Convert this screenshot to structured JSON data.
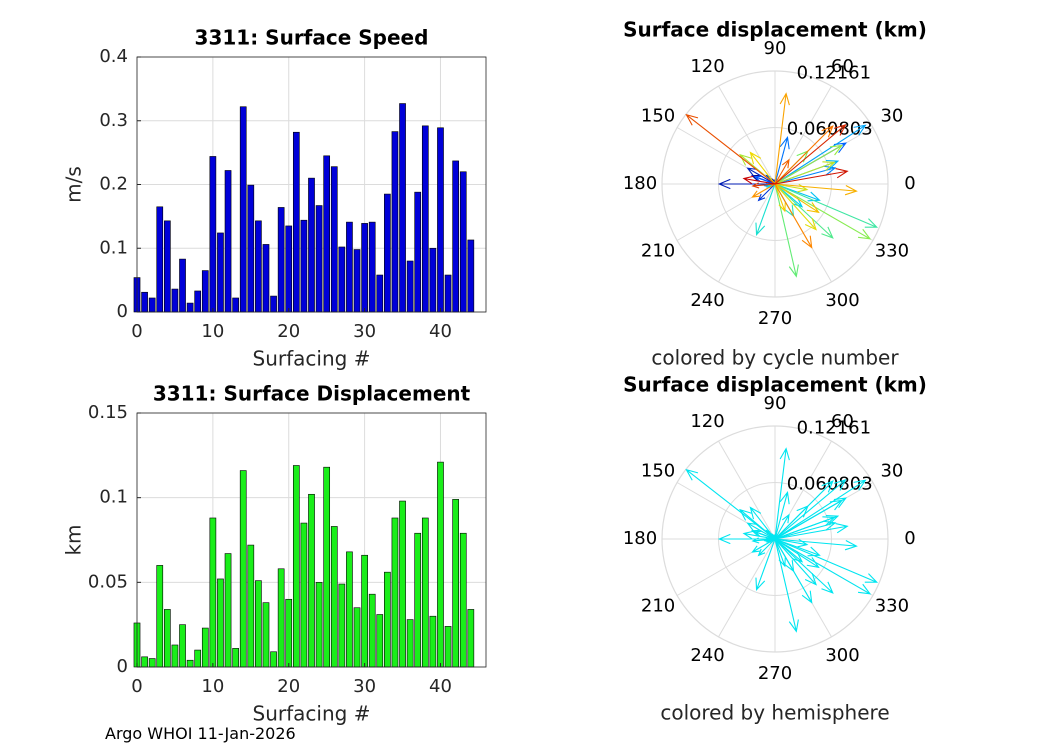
{
  "footer": "Argo WHOI 11-Jan-2026",
  "colors": {
    "speed_bar": "#0000d8",
    "displacement_bar": "#1aee1a",
    "hemisphere_arrow": "#00e5f0",
    "grid": "#dcdcdc",
    "axis": "#262626"
  },
  "chart_data": [
    {
      "id": "speed",
      "type": "bar",
      "title": "3311: Surface Speed",
      "xlabel": "Surfacing #",
      "ylabel": "m/s",
      "xlim": [
        0,
        46
      ],
      "ylim": [
        0,
        0.4
      ],
      "xticks": [
        0,
        10,
        20,
        30,
        40
      ],
      "yticks": [
        0,
        0.1,
        0.2,
        0.3,
        0.4
      ],
      "ytick_labels": [
        "0",
        "0.1",
        "0.2",
        "0.3",
        "0.4"
      ],
      "grid": true,
      "x": [
        0,
        1,
        2,
        3,
        4,
        5,
        6,
        7,
        8,
        9,
        10,
        11,
        12,
        13,
        14,
        15,
        16,
        17,
        18,
        19,
        20,
        21,
        22,
        23,
        24,
        25,
        26,
        27,
        28,
        29,
        30,
        31,
        32,
        33,
        34,
        35,
        36,
        37,
        38,
        39,
        40,
        41,
        42,
        43,
        44
      ],
      "values": [
        0.054,
        0.031,
        0.022,
        0.165,
        0.143,
        0.036,
        0.083,
        0.014,
        0.033,
        0.065,
        0.244,
        0.124,
        0.222,
        0.022,
        0.322,
        0.199,
        0.143,
        0.106,
        0.025,
        0.164,
        0.135,
        0.282,
        0.144,
        0.21,
        0.167,
        0.245,
        0.228,
        0.102,
        0.141,
        0.098,
        0.139,
        0.141,
        0.058,
        0.185,
        0.283,
        0.327,
        0.08,
        0.188,
        0.292,
        0.1,
        0.289,
        0.058,
        0.237,
        0.22,
        0.113
      ]
    },
    {
      "id": "displacement",
      "type": "bar",
      "title": "3311: Surface Displacement",
      "xlabel": "Surfacing #",
      "ylabel": "km",
      "xlim": [
        0,
        46
      ],
      "ylim": [
        0,
        0.15
      ],
      "xticks": [
        0,
        10,
        20,
        30,
        40
      ],
      "yticks": [
        0,
        0.05,
        0.1,
        0.15
      ],
      "ytick_labels": [
        "0",
        "0.05",
        "0.1",
        "0.15"
      ],
      "grid": true,
      "x": [
        0,
        1,
        2,
        3,
        4,
        5,
        6,
        7,
        8,
        9,
        10,
        11,
        12,
        13,
        14,
        15,
        16,
        17,
        18,
        19,
        20,
        21,
        22,
        23,
        24,
        25,
        26,
        27,
        28,
        29,
        30,
        31,
        32,
        33,
        34,
        35,
        36,
        37,
        38,
        39,
        40,
        41,
        42,
        43,
        44
      ],
      "values": [
        0.026,
        0.006,
        0.005,
        0.06,
        0.034,
        0.013,
        0.025,
        0.004,
        0.01,
        0.023,
        0.088,
        0.052,
        0.067,
        0.011,
        0.116,
        0.072,
        0.051,
        0.038,
        0.009,
        0.058,
        0.04,
        0.119,
        0.085,
        0.102,
        0.05,
        0.118,
        0.083,
        0.049,
        0.068,
        0.035,
        0.066,
        0.043,
        0.031,
        0.056,
        0.088,
        0.098,
        0.028,
        0.079,
        0.088,
        0.03,
        0.121,
        0.024,
        0.099,
        0.079,
        0.034
      ]
    },
    {
      "id": "polar-cycle",
      "type": "polar-quiver",
      "title": "Surface displacement (km)",
      "xlabel": "colored by cycle number",
      "rmax": 0.12161,
      "rtick_labels": [
        "0.060803",
        "0.12161"
      ],
      "rticks": [
        0.060803,
        0.12161
      ],
      "angle_labels": [
        "0",
        "30",
        "60",
        "90",
        "120",
        "150",
        "180",
        "210",
        "240",
        "270",
        "300",
        "330"
      ],
      "color_mode": "cycle",
      "vectors": [
        {
          "angle": 160,
          "r": 0.026
        },
        {
          "angle": 120,
          "r": 0.006
        },
        {
          "angle": 75,
          "r": 0.005
        },
        {
          "angle": 180,
          "r": 0.06
        },
        {
          "angle": 150,
          "r": 0.034
        },
        {
          "angle": 135,
          "r": 0.013
        },
        {
          "angle": 225,
          "r": 0.025
        },
        {
          "angle": 100,
          "r": 0.004
        },
        {
          "angle": 180,
          "r": 0.01
        },
        {
          "angle": 160,
          "r": 0.023
        },
        {
          "angle": 30,
          "r": 0.088
        },
        {
          "angle": 75,
          "r": 0.052
        },
        {
          "angle": 15,
          "r": 0.067
        },
        {
          "angle": 190,
          "r": 0.011
        },
        {
          "angle": 33,
          "r": 0.116
        },
        {
          "angle": 20,
          "r": 0.072
        },
        {
          "angle": 340,
          "r": 0.051
        },
        {
          "angle": 320,
          "r": 0.038
        },
        {
          "angle": 200,
          "r": 0.009
        },
        {
          "angle": 250,
          "r": 0.058
        },
        {
          "angle": 300,
          "r": 0.04
        },
        {
          "angle": 337,
          "r": 0.119
        },
        {
          "angle": 317,
          "r": 0.085
        },
        {
          "angle": 283,
          "r": 0.102
        },
        {
          "angle": 45,
          "r": 0.05
        },
        {
          "angle": 330,
          "r": 0.118
        },
        {
          "angle": 30,
          "r": 0.083
        },
        {
          "angle": 140,
          "r": 0.049
        },
        {
          "angle": 20,
          "r": 0.068
        },
        {
          "angle": 350,
          "r": 0.035
        },
        {
          "angle": 312,
          "r": 0.066
        },
        {
          "angle": 128,
          "r": 0.043
        },
        {
          "angle": 290,
          "r": 0.031
        },
        {
          "angle": 327,
          "r": 0.056
        },
        {
          "angle": 355,
          "r": 0.088
        },
        {
          "angle": 83,
          "r": 0.098
        },
        {
          "angle": 210,
          "r": 0.028
        },
        {
          "angle": 300,
          "r": 0.079
        },
        {
          "angle": 45,
          "r": 0.088
        },
        {
          "angle": 60,
          "r": 0.03
        },
        {
          "angle": 142,
          "r": 0.121
        },
        {
          "angle": 185,
          "r": 0.024
        },
        {
          "angle": 40,
          "r": 0.099
        },
        {
          "angle": 10,
          "r": 0.079
        },
        {
          "angle": 170,
          "r": 0.034
        }
      ]
    },
    {
      "id": "polar-hemisphere",
      "type": "polar-quiver",
      "title": "Surface displacement (km)",
      "xlabel": "colored by hemisphere",
      "rmax": 0.12161,
      "rtick_labels": [
        "0.060803",
        "0.12161"
      ],
      "rticks": [
        0.060803,
        0.12161
      ],
      "angle_labels": [
        "0",
        "30",
        "60",
        "90",
        "120",
        "150",
        "180",
        "210",
        "240",
        "270",
        "300",
        "330"
      ],
      "color_mode": "single",
      "vectors": "same-as-polar-cycle"
    }
  ]
}
